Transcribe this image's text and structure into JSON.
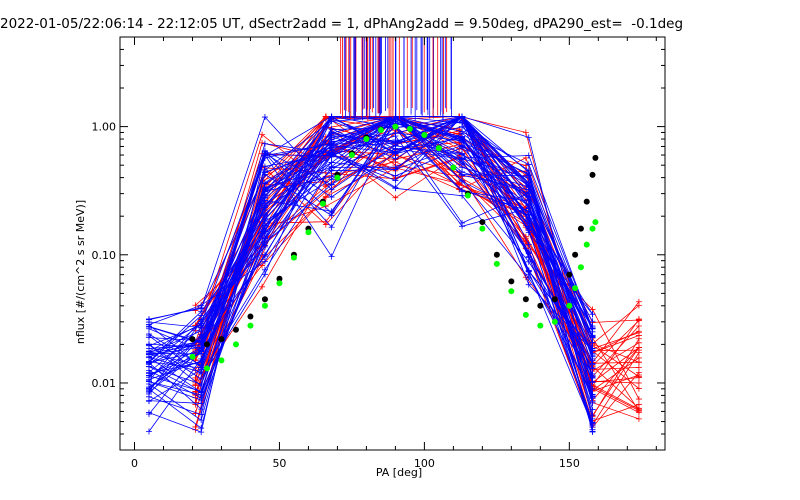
{
  "chart_data": {
    "type": "line",
    "title": "2022-01-05/22:06:14 - 22:12:05 UT, dSectr2add = 1, dPhAng2add = 9.50deg, dPA290_est=  -0.1deg",
    "xlabel": "PA [deg]",
    "ylabel": "nflux [#/(cm^2 s sr MeV)]",
    "xlim": [
      -5,
      183
    ],
    "ylim": [
      0.003,
      5.0
    ],
    "yscale": "log",
    "x_ticks": [
      0,
      50,
      100,
      150
    ],
    "x_tick_labels": [
      "0",
      "50",
      "100",
      "150"
    ],
    "y_ticks": [
      0.01,
      0.1,
      1.0
    ],
    "y_tick_labels": [
      "0.01",
      "0.10",
      "1.00"
    ],
    "grid": false,
    "colors": {
      "red": "#ff0000",
      "blue": "#0000ff",
      "black": "#000000",
      "green": "#00ff00"
    },
    "series": [
      {
        "color": "black",
        "style": "points",
        "x": [
          20,
          25,
          30,
          35,
          40,
          45,
          50,
          55,
          60,
          65,
          70,
          75,
          80,
          85,
          90,
          95,
          100,
          105,
          110,
          115,
          120,
          125,
          130,
          135,
          140,
          145,
          150,
          152,
          154,
          156,
          158,
          159
        ],
        "y": [
          0.022,
          0.02,
          0.022,
          0.026,
          0.033,
          0.045,
          0.065,
          0.1,
          0.16,
          0.26,
          0.42,
          0.62,
          0.82,
          0.95,
          1.0,
          0.96,
          0.86,
          0.68,
          0.48,
          0.3,
          0.18,
          0.1,
          0.062,
          0.045,
          0.04,
          0.045,
          0.07,
          0.1,
          0.16,
          0.26,
          0.42,
          0.57
        ]
      },
      {
        "color": "green",
        "style": "points",
        "x": [
          20,
          25,
          30,
          35,
          40,
          45,
          50,
          55,
          60,
          65,
          70,
          75,
          80,
          85,
          90,
          95,
          100,
          105,
          110,
          115,
          120,
          125,
          130,
          135,
          140,
          145,
          150,
          152,
          154,
          156,
          158,
          159
        ],
        "y": [
          0.016,
          0.013,
          0.015,
          0.02,
          0.028,
          0.04,
          0.06,
          0.095,
          0.15,
          0.25,
          0.4,
          0.6,
          0.8,
          0.94,
          1.0,
          0.96,
          0.86,
          0.68,
          0.48,
          0.29,
          0.16,
          0.085,
          0.052,
          0.034,
          0.028,
          0.03,
          0.04,
          0.055,
          0.08,
          0.12,
          0.16,
          0.18
        ]
      }
    ]
  }
}
